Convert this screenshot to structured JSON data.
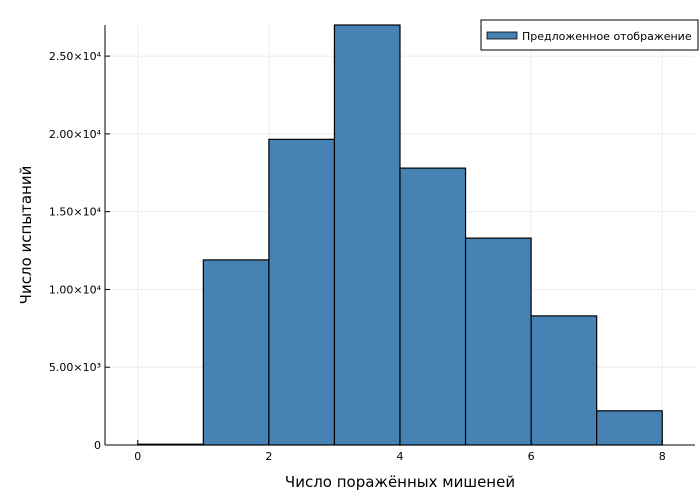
{
  "chart_data": {
    "type": "bar",
    "bins": [
      {
        "x0": 0,
        "x1": 1,
        "value": 50
      },
      {
        "x0": 1,
        "x1": 2,
        "value": 11900
      },
      {
        "x0": 2,
        "x1": 3,
        "value": 19650
      },
      {
        "x0": 3,
        "x1": 4,
        "value": 27000
      },
      {
        "x0": 4,
        "x1": 5,
        "value": 17800
      },
      {
        "x0": 5,
        "x1": 6,
        "value": 13300
      },
      {
        "x0": 6,
        "x1": 7,
        "value": 8300
      },
      {
        "x0": 7,
        "x1": 8,
        "value": 2200
      }
    ],
    "series": [
      {
        "name": "Предложенное отображение",
        "color": "#4682b4"
      }
    ],
    "xlabel": "Число поражённых мишеней",
    "ylabel": "Число испытаний",
    "xlim": [
      -0.5,
      8.5
    ],
    "ylim": [
      0,
      27000
    ],
    "xticks": [
      {
        "value": 0,
        "label": "0"
      },
      {
        "value": 2,
        "label": "2"
      },
      {
        "value": 4,
        "label": "4"
      },
      {
        "value": 6,
        "label": "6"
      },
      {
        "value": 8,
        "label": "8"
      }
    ],
    "yticks": [
      {
        "value": 0,
        "label": "0"
      },
      {
        "value": 5000,
        "label": "5.00×10³"
      },
      {
        "value": 10000,
        "label": "1.00×10⁴"
      },
      {
        "value": 15000,
        "label": "1.50×10⁴"
      },
      {
        "value": 20000,
        "label": "2.00×10⁴"
      },
      {
        "value": 25000,
        "label": "2.50×10⁴"
      }
    ],
    "grid": true,
    "legend_position": "top-right"
  }
}
